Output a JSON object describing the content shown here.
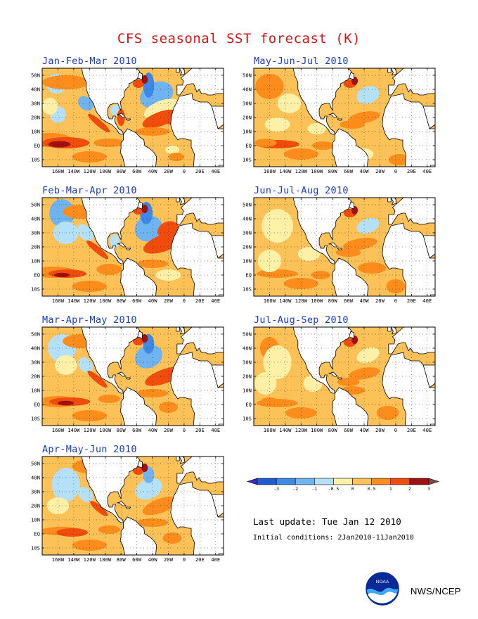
{
  "title": "CFS seasonal SST forecast (K)",
  "panels": [
    {
      "id": "jfm",
      "title": "Jan-Feb-Mar 2010"
    },
    {
      "id": "mjj",
      "title": "May-Jun-Jul 2010"
    },
    {
      "id": "fma",
      "title": "Feb-Mar-Apr 2010"
    },
    {
      "id": "jja",
      "title": "Jun-Jul-Aug 2010"
    },
    {
      "id": "mam",
      "title": "Mar-Apr-May 2010"
    },
    {
      "id": "jas",
      "title": "Jul-Aug-Sep 2010"
    },
    {
      "id": "amj",
      "title": "Apr-May-Jun 2010"
    }
  ],
  "axes": {
    "lat_ticks": [
      "50N",
      "40N",
      "30N",
      "20N",
      "10N",
      "EQ",
      "10S"
    ],
    "lon_ticks": [
      "160W",
      "140W",
      "120W",
      "100W",
      "80W",
      "60W",
      "40W",
      "20W",
      "0",
      "20E",
      "40E"
    ]
  },
  "colorbar": {
    "labels": [
      "-3",
      "-2",
      "-1",
      "-0.5",
      "0",
      "0.5",
      "1",
      "2",
      "3"
    ],
    "colors": [
      "#3c2ab8",
      "#1e5cd4",
      "#3c8ae6",
      "#6fb4f0",
      "#b4e0f8",
      "#fff0a8",
      "#fcc258",
      "#fc8c1c",
      "#f04c0c",
      "#a01010",
      "#804848"
    ]
  },
  "last_update": "Last update: Tue Jan 12 2010",
  "initial_conditions": "Initial conditions: 2Jan2010-11Jan2010",
  "agency": "NWS/NCEP",
  "chart_data": {
    "type": "heatmap",
    "title": "CFS seasonal SST forecast (K)",
    "variable": "SST anomaly",
    "units": "K",
    "region": "180W-50E, 15S-55N",
    "xlabel": "",
    "ylabel": "",
    "lat_range": [
      "15S",
      "55N"
    ],
    "lon_range": [
      "180W",
      "50E"
    ],
    "contour_levels": [
      -3,
      -2,
      -1,
      -0.5,
      0,
      0.5,
      1,
      2,
      3
    ],
    "maps": [
      {
        "season": "Jan-Feb-Mar 2010"
      },
      {
        "season": "Feb-Mar-Apr 2010"
      },
      {
        "season": "Mar-Apr-May 2010"
      },
      {
        "season": "Apr-May-Jun 2010"
      },
      {
        "season": "May-Jun-Jul 2010"
      },
      {
        "season": "Jun-Jul-Aug 2010"
      },
      {
        "season": "Jul-Aug-Sep 2010"
      }
    ]
  }
}
